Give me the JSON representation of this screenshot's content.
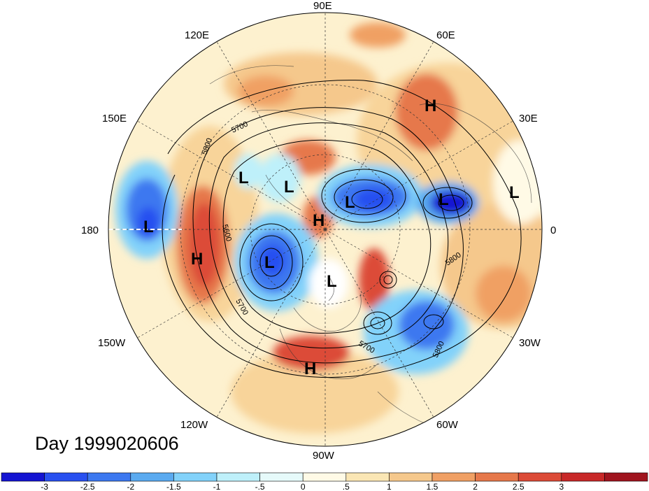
{
  "map": {
    "projection": "north-polar-stereographic",
    "longitude_labels": [
      {
        "text": "90E",
        "lon": 90
      },
      {
        "text": "60E",
        "lon": 60
      },
      {
        "text": "30E",
        "lon": 30
      },
      {
        "text": "0",
        "lon": 0
      },
      {
        "text": "30W",
        "lon": -30
      },
      {
        "text": "60W",
        "lon": -60
      },
      {
        "text": "90W",
        "lon": -90
      },
      {
        "text": "120W",
        "lon": -120
      },
      {
        "text": "150W",
        "lon": -150
      },
      {
        "text": "180",
        "lon": 180
      },
      {
        "text": "150E",
        "lon": 150
      },
      {
        "text": "120E",
        "lon": 120
      }
    ],
    "pressure_centers": [
      {
        "type": "H",
        "text": "H",
        "name": "high-north-europe"
      },
      {
        "type": "H",
        "text": "H",
        "name": "high-arctic"
      },
      {
        "type": "H",
        "text": "H",
        "name": "high-north-pacific"
      },
      {
        "type": "H",
        "text": "H",
        "name": "high-gulf-of-mexico"
      },
      {
        "type": "L",
        "text": "L",
        "name": "low-pacific-date-line"
      },
      {
        "type": "L",
        "text": "L",
        "name": "low-east-siberia"
      },
      {
        "type": "L",
        "text": "L",
        "name": "low-siberia"
      },
      {
        "type": "L",
        "text": "L",
        "name": "low-north-central-siberia"
      },
      {
        "type": "L",
        "text": "L",
        "name": "low-barents-sea"
      },
      {
        "type": "L",
        "text": "L",
        "name": "low-alaska"
      },
      {
        "type": "L",
        "text": "L",
        "name": "low-hudson-bay"
      },
      {
        "type": "L",
        "text": "L",
        "name": "low-africa"
      }
    ],
    "contour_labels": [
      "5700",
      "5800",
      "5600",
      "5700",
      "5800",
      "5700",
      "5800"
    ],
    "day_label": "Day 1999020606"
  },
  "colorbar": {
    "colors": [
      "#1414d2",
      "#2850f0",
      "#3c78f0",
      "#5aaaf0",
      "#82d2fa",
      "#bef0fa",
      "#e6fafa",
      "#fffae6",
      "#fae6b4",
      "#f5c88c",
      "#f0a064",
      "#e6784b",
      "#dc4b37",
      "#c82828",
      "#a0141e"
    ],
    "tick_labels": [
      "-3",
      "-2.5",
      "-2",
      "-1.5",
      "-1",
      "-.5",
      "0",
      ".5",
      "1",
      "1.5",
      "2",
      "2.5",
      "3"
    ]
  }
}
